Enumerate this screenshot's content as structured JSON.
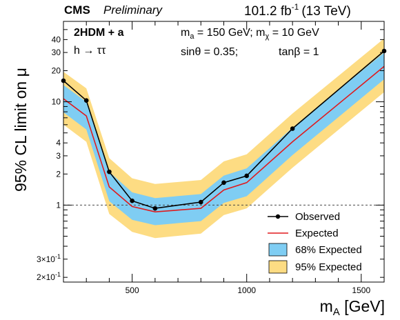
{
  "header": {
    "cms_label": "CMS",
    "preliminary_label": "Preliminary",
    "lumi_prefix": "101.2 fb",
    "lumi_exponent": "-1",
    "lumi_suffix": "(13 TeV)"
  },
  "annotations": {
    "model": "2HDM + a",
    "decay": "h → ττ",
    "ma_sym": "m",
    "ma_sub": "a",
    "ma_val": " = 150 GeV; m",
    "mchi_sub": "χ",
    "mchi_val": " = 10 GeV",
    "sintheta": "sinθ = 0.35;",
    "tanbeta": "tanβ = 1"
  },
  "chart_data": {
    "type": "line",
    "xlabel": "m",
    "xlabel_sub": "A",
    "xlabel_unit": " [GeV]",
    "ylabel": "95% CL limit on μ",
    "xlim": [
      200,
      1600
    ],
    "ylim": [
      0.18,
      60
    ],
    "y_scale": "log",
    "x_ticks": [
      500,
      1000,
      1500
    ],
    "y_ticks": [
      {
        "value": 0.2,
        "label": "2×10",
        "exp": "-1"
      },
      {
        "value": 0.3,
        "label": "3×10",
        "exp": "-1"
      },
      {
        "value": 1,
        "label": "1",
        "exp": ""
      },
      {
        "value": 2,
        "label": "2",
        "exp": ""
      },
      {
        "value": 3,
        "label": "3",
        "exp": ""
      },
      {
        "value": 4,
        "label": "4",
        "exp": ""
      },
      {
        "value": 10,
        "label": "10",
        "exp": ""
      },
      {
        "value": 20,
        "label": "20",
        "exp": ""
      },
      {
        "value": 30,
        "label": "30",
        "exp": ""
      },
      {
        "value": 40,
        "label": "40",
        "exp": ""
      }
    ],
    "reference_line": 1,
    "x": [
      200,
      300,
      400,
      500,
      600,
      800,
      900,
      1000,
      1200,
      1600
    ],
    "series": [
      {
        "name": "Observed",
        "color": "#000000",
        "values": [
          16,
          10.3,
          2.1,
          1.1,
          0.93,
          1.07,
          1.65,
          1.92,
          5.5,
          31
        ]
      },
      {
        "name": "Expected",
        "color": "#e0191c",
        "values": [
          10.7,
          7.3,
          1.5,
          0.97,
          0.86,
          0.93,
          1.4,
          1.65,
          4.1,
          22
        ]
      },
      {
        "name": "68% Expected",
        "color": "#7fcdf3",
        "lower": [
          7.9,
          5.4,
          1.09,
          0.72,
          0.64,
          0.7,
          1.05,
          1.22,
          3.05,
          16.5
        ],
        "upper": [
          14.5,
          10.0,
          2.1,
          1.33,
          1.17,
          1.28,
          1.93,
          2.27,
          5.6,
          30
        ]
      },
      {
        "name": "95% Expected",
        "color": "#fddc83",
        "lower": [
          6.0,
          4.1,
          0.82,
          0.55,
          0.48,
          0.53,
          0.8,
          0.93,
          2.3,
          12.4
        ],
        "upper": [
          19.5,
          13.5,
          2.85,
          1.82,
          1.6,
          1.75,
          2.65,
          3.1,
          7.7,
          41
        ]
      }
    ],
    "legend_position": "bottom-right"
  }
}
